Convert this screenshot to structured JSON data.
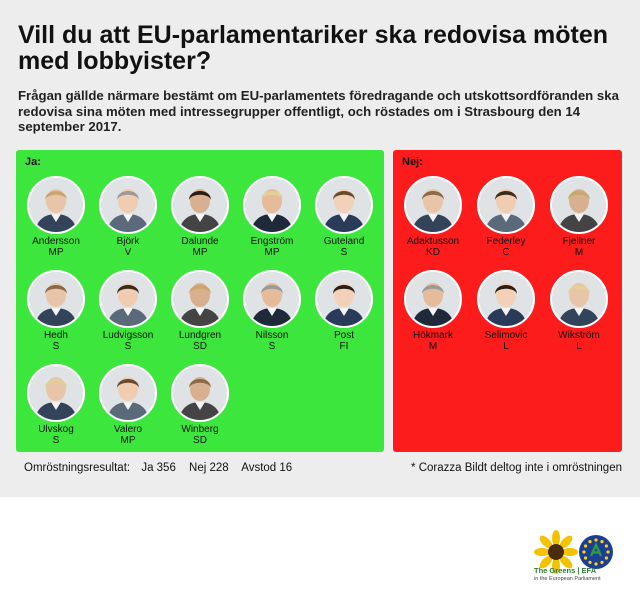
{
  "title": "Vill du att EU-parlamentariker ska redovisa möten med lobbyister?",
  "description": "Frågan gällde närmare bestämt om EU-parlamentets föredragande och utskottsordföranden ska redovisa sina möten med intressegrupper offentligt, och röstades om i Strasbourg den 14 september 2017.",
  "ja": {
    "label": "Ja:",
    "color": "#3de63d",
    "members": [
      {
        "name": "Andersson",
        "party": "MP"
      },
      {
        "name": "Björk",
        "party": "V"
      },
      {
        "name": "Dalunde",
        "party": "MP"
      },
      {
        "name": "Engström",
        "party": "MP"
      },
      {
        "name": "Guteland",
        "party": "S"
      },
      {
        "name": "Hedh",
        "party": "S"
      },
      {
        "name": "Ludvigsson",
        "party": "S"
      },
      {
        "name": "Lundgren",
        "party": "SD"
      },
      {
        "name": "Nilsson",
        "party": "S"
      },
      {
        "name": "Post",
        "party": "FI"
      },
      {
        "name": "Ulvskog",
        "party": "S"
      },
      {
        "name": "Valero",
        "party": "MP"
      },
      {
        "name": "Winberg",
        "party": "SD"
      }
    ]
  },
  "nej": {
    "label": "Nej:",
    "color": "#fc1c1c",
    "members": [
      {
        "name": "Adaktusson",
        "party": "KD"
      },
      {
        "name": "Federley",
        "party": "C"
      },
      {
        "name": "Fjellner",
        "party": "M"
      },
      {
        "name": "Hökmark",
        "party": "M"
      },
      {
        "name": "Selimovic",
        "party": "L"
      },
      {
        "name": "Wikström",
        "party": "L"
      }
    ]
  },
  "result": {
    "label": "Omröstningsresultat:",
    "ja": "Ja 356",
    "nej": "Nej 228",
    "avstod": "Avstod 16"
  },
  "footnote": "* Corazza Bildt deltog inte i omröstningen",
  "logo": {
    "name": "The Greens | EFA",
    "subtitle": "in the European Parliament",
    "icons": [
      "sunflower-icon",
      "eu-stars-icon"
    ]
  }
}
